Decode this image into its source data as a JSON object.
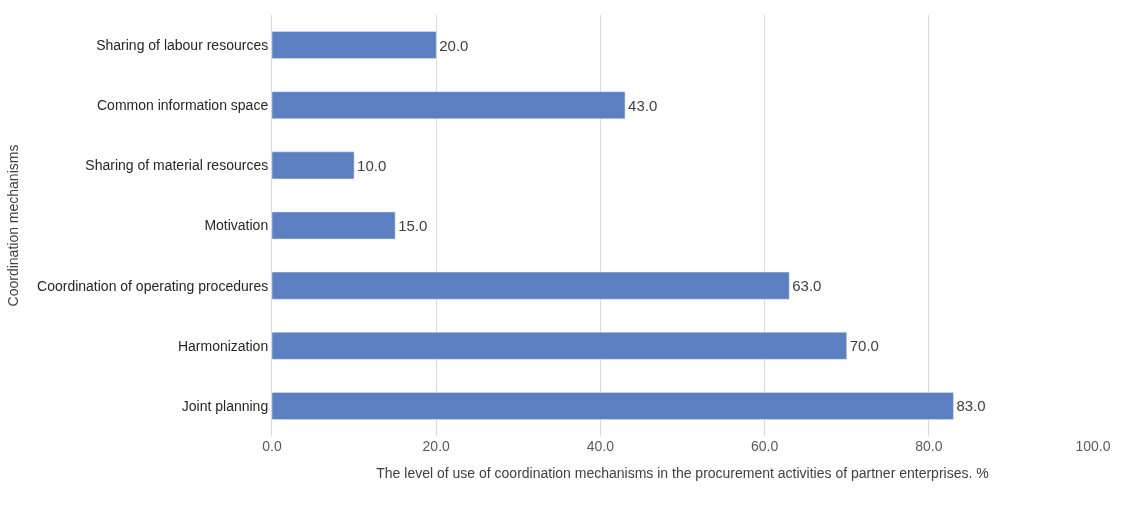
{
  "chart_data": {
    "type": "bar",
    "orientation": "horizontal",
    "xlabel": "The level of use of coordination mechanisms in the procurement activities of partner enterprises. %",
    "ylabel": "Coordination mechanisms",
    "categories": [
      "Sharing of labour resources",
      "Common information space",
      "Sharing of material resources",
      "Motivation",
      "Coordination of operating procedures",
      "Harmonization",
      "Joint planning"
    ],
    "values": [
      20,
      43,
      10,
      15,
      63,
      70,
      83
    ],
    "value_labels": [
      "20.0",
      "43.0",
      "10.0",
      "15.0",
      "63.0",
      "70.0",
      "83.0"
    ],
    "color": "#5b7fc0",
    "xlim": [
      0,
      100
    ],
    "xticks": [
      {
        "value": 0,
        "label": "0.0"
      },
      {
        "value": 20,
        "label": "20.0"
      },
      {
        "value": 40,
        "label": "40.0"
      },
      {
        "value": 60,
        "label": "60.0"
      },
      {
        "value": 80,
        "label": "80.0"
      },
      {
        "value": 100,
        "label": "100.0"
      }
    ],
    "grid": "x"
  }
}
